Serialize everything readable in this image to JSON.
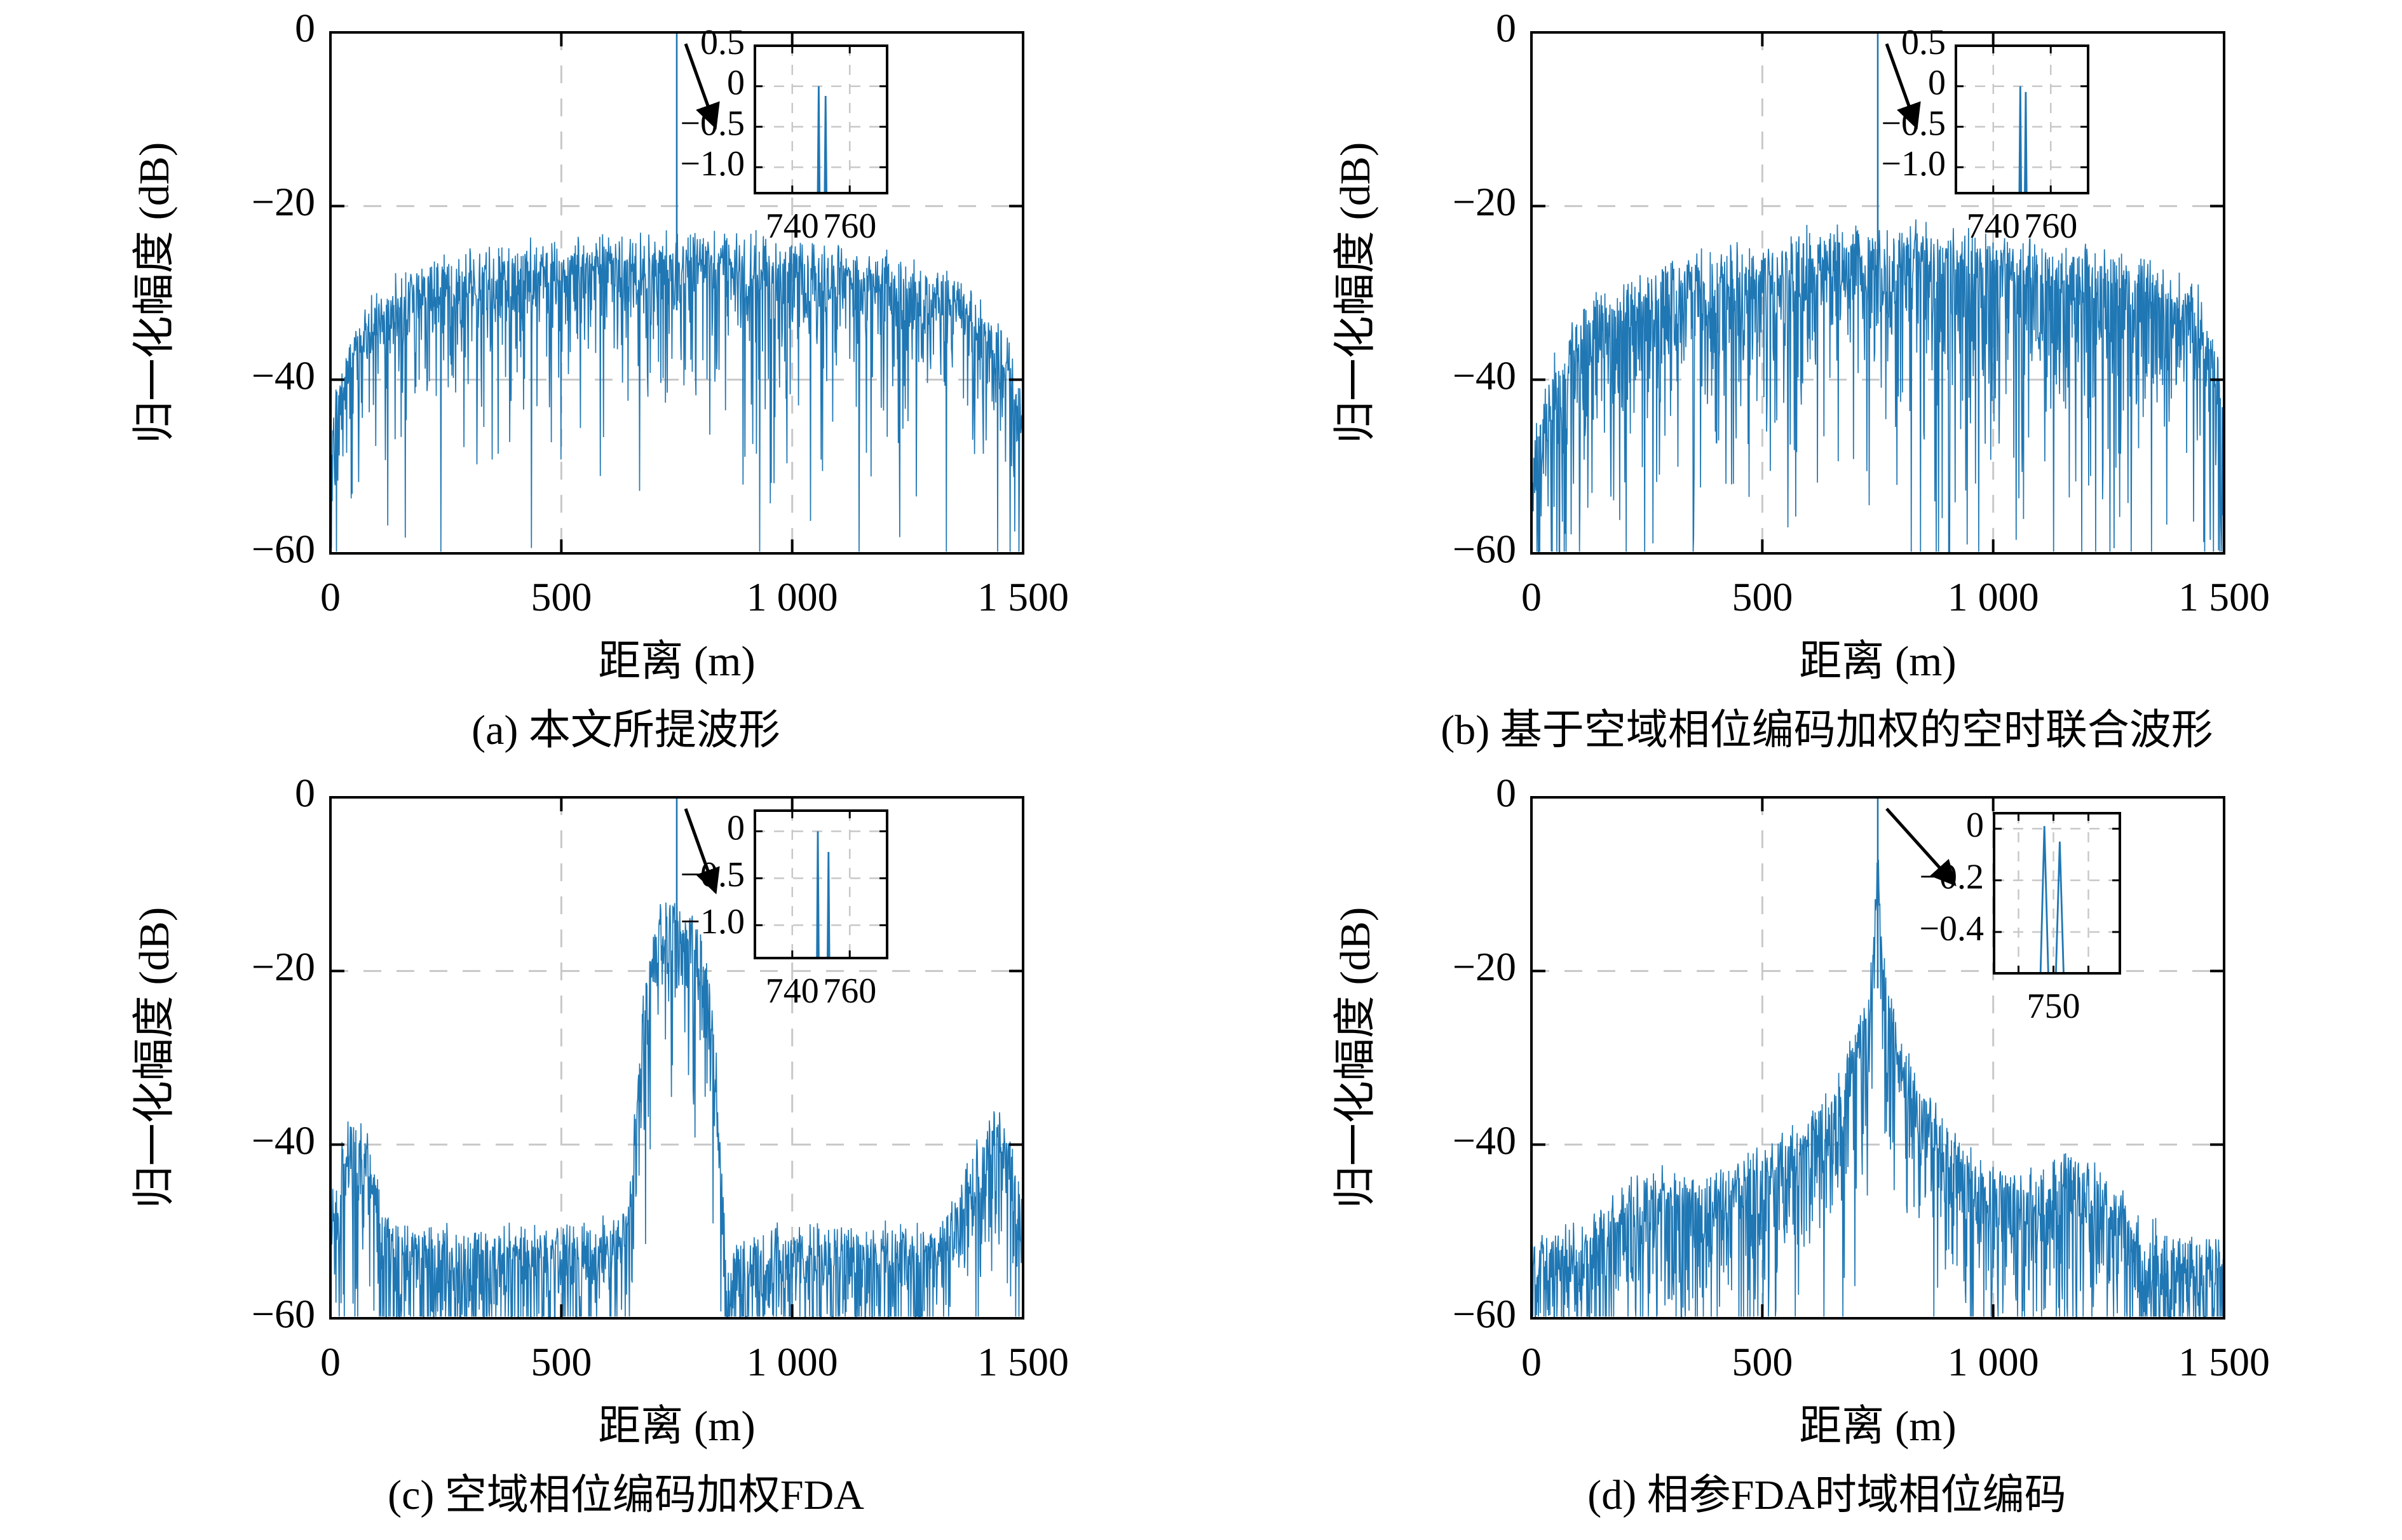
{
  "figure": {
    "line_color": "#1f77b4",
    "grid_color": "#c8c8c8",
    "frame_color": "#000000",
    "text_color": "#000000"
  },
  "chart_data": [
    {
      "id": "a",
      "type": "line",
      "caption": "(a) 本文所提波形",
      "xlabel": "距离 (m)",
      "ylabel": "归一化幅度 (dB)",
      "xlim": [
        0,
        1500
      ],
      "ylim": [
        -60,
        0
      ],
      "xticks": [
        {
          "v": 0,
          "label": "0"
        },
        {
          "v": 500,
          "label": "500"
        },
        {
          "v": 1000,
          "label": "1 000"
        },
        {
          "v": 1500,
          "label": "1 500"
        }
      ],
      "yticks": [
        {
          "v": 0,
          "label": "0"
        },
        {
          "v": -20,
          "label": "−20"
        },
        {
          "v": -40,
          "label": "−40"
        },
        {
          "v": -60,
          "label": "−60"
        }
      ],
      "grid_x": [
        500,
        1000
      ],
      "grid_y": [
        -20,
        -40
      ],
      "peak": {
        "x": 750,
        "y": 0
      },
      "peak_drop": 8,
      "envelope": [
        [
          0,
          -46
        ],
        [
          15,
          -40
        ],
        [
          40,
          -36
        ],
        [
          80,
          -32
        ],
        [
          150,
          -29
        ],
        [
          250,
          -27
        ],
        [
          400,
          -25.5
        ],
        [
          600,
          -24.5
        ],
        [
          750,
          -24
        ],
        [
          900,
          -24.5
        ],
        [
          1100,
          -25.5
        ],
        [
          1250,
          -27
        ],
        [
          1350,
          -29
        ],
        [
          1420,
          -32
        ],
        [
          1470,
          -37
        ],
        [
          1500,
          -43
        ]
      ],
      "noise": {
        "seed": 101,
        "n": 1500,
        "mean_depth": 4.4,
        "deep_prob": 0.05,
        "deep_extra": 27,
        "top_jitter": 2.0
      },
      "inset": {
        "xlim": [
          727,
          773
        ],
        "ylim": [
          -1.32,
          0.5
        ],
        "xticks": [
          {
            "v": 740,
            "label": "740"
          },
          {
            "v": 760,
            "label": "760"
          }
        ],
        "yticks": [
          {
            "v": 0.5,
            "label": "0.5"
          },
          {
            "v": 0,
            "label": "0"
          },
          {
            "v": -0.5,
            "label": "−0.5"
          },
          {
            "v": -1.0,
            "label": "−1.0"
          }
        ],
        "spike_w": 0.3,
        "spikes": [
          {
            "x": 749.2,
            "y": 0
          },
          {
            "x": 751.6,
            "y": -0.12
          }
        ]
      }
    },
    {
      "id": "b",
      "type": "line",
      "caption": "(b) 基于空域相位编码加权的空时联合波形",
      "xlabel": "距离 (m)",
      "ylabel": "归一化幅度 (dB)",
      "xlim": [
        0,
        1500
      ],
      "ylim": [
        -60,
        0
      ],
      "xticks": [
        {
          "v": 0,
          "label": "0"
        },
        {
          "v": 500,
          "label": "500"
        },
        {
          "v": 1000,
          "label": "1 000"
        },
        {
          "v": 1500,
          "label": "1 500"
        }
      ],
      "yticks": [
        {
          "v": 0,
          "label": "0"
        },
        {
          "v": -20,
          "label": "−20"
        },
        {
          "v": -40,
          "label": "−40"
        },
        {
          "v": -60,
          "label": "−60"
        }
      ],
      "grid_x": [
        500,
        1000
      ],
      "grid_y": [
        -20,
        -40
      ],
      "peak": {
        "x": 750,
        "y": 0
      },
      "peak_drop": 8,
      "envelope": [
        [
          0,
          -50
        ],
        [
          20,
          -43
        ],
        [
          60,
          -37
        ],
        [
          120,
          -32
        ],
        [
          220,
          -29
        ],
        [
          350,
          -26.5
        ],
        [
          500,
          -25
        ],
        [
          650,
          -23.5
        ],
        [
          800,
          -23
        ],
        [
          950,
          -24
        ],
        [
          1100,
          -25
        ],
        [
          1250,
          -26.5
        ],
        [
          1370,
          -28
        ],
        [
          1440,
          -30
        ],
        [
          1480,
          -35
        ],
        [
          1500,
          -44
        ]
      ],
      "noise": {
        "seed": 202,
        "n": 1500,
        "mean_depth": 6.0,
        "deep_prob": 0.07,
        "deep_extra": 28,
        "top_jitter": 2.0
      },
      "inset": {
        "xlim": [
          727,
          773
        ],
        "ylim": [
          -1.32,
          0.5
        ],
        "xticks": [
          {
            "v": 740,
            "label": "740"
          },
          {
            "v": 760,
            "label": "760"
          }
        ],
        "yticks": [
          {
            "v": 0.5,
            "label": "0.5"
          },
          {
            "v": 0,
            "label": "0"
          },
          {
            "v": -0.5,
            "label": "−0.5"
          },
          {
            "v": -1.0,
            "label": "−1.0"
          }
        ],
        "spike_w": 0.3,
        "spikes": [
          {
            "x": 749.4,
            "y": 0
          },
          {
            "x": 751.3,
            "y": -0.07
          }
        ]
      }
    },
    {
      "id": "c",
      "type": "line",
      "caption": "(c) 空域相位编码加权FDA",
      "xlabel": "距离 (m)",
      "ylabel": "归一化幅度 (dB)",
      "xlim": [
        0,
        1500
      ],
      "ylim": [
        -60,
        0
      ],
      "xticks": [
        {
          "v": 0,
          "label": "0"
        },
        {
          "v": 500,
          "label": "500"
        },
        {
          "v": 1000,
          "label": "1 000"
        },
        {
          "v": 1500,
          "label": "1 500"
        }
      ],
      "yticks": [
        {
          "v": 0,
          "label": "0"
        },
        {
          "v": -20,
          "label": "−20"
        },
        {
          "v": -40,
          "label": "−40"
        },
        {
          "v": -60,
          "label": "−60"
        }
      ],
      "grid_x": [
        500,
        1000
      ],
      "grid_y": [
        -20,
        -40
      ],
      "peak": {
        "x": 750,
        "y": 0
      },
      "peak_drop": 9,
      "envelope": [
        [
          0,
          -48
        ],
        [
          25,
          -40
        ],
        [
          55,
          -36.5
        ],
        [
          85,
          -41
        ],
        [
          115,
          -48
        ],
        [
          150,
          -50
        ],
        [
          300,
          -50.5
        ],
        [
          500,
          -50
        ],
        [
          620,
          -49
        ],
        [
          650,
          -45
        ],
        [
          665,
          -32
        ],
        [
          680,
          -22
        ],
        [
          695,
          -16
        ],
        [
          715,
          -13.5
        ],
        [
          750,
          -13
        ],
        [
          785,
          -14
        ],
        [
          805,
          -16
        ],
        [
          820,
          -21
        ],
        [
          835,
          -30
        ],
        [
          848,
          -43
        ],
        [
          858,
          -55
        ],
        [
          880,
          -52
        ],
        [
          950,
          -50.5
        ],
        [
          1150,
          -50
        ],
        [
          1300,
          -50
        ],
        [
          1360,
          -46
        ],
        [
          1400,
          -40
        ],
        [
          1435,
          -36.5
        ],
        [
          1465,
          -38
        ],
        [
          1490,
          -44
        ],
        [
          1500,
          -47
        ]
      ],
      "noise": {
        "seed": 303,
        "n": 1500,
        "mean_depth": 5.0,
        "deep_prob": 0.06,
        "deep_extra": 18,
        "top_jitter": 1.6
      },
      "inset": {
        "xlim": [
          727,
          773
        ],
        "ylim": [
          -1.35,
          0.22
        ],
        "xticks": [
          {
            "v": 740,
            "label": "740"
          },
          {
            "v": 760,
            "label": "760"
          }
        ],
        "yticks": [
          {
            "v": 0,
            "label": "0"
          },
          {
            "v": -0.5,
            "label": "−0.5"
          },
          {
            "v": -1.0,
            "label": "−1.0"
          }
        ],
        "spike_w": 0.3,
        "spikes": [
          {
            "x": 748.9,
            "y": 0
          },
          {
            "x": 752.6,
            "y": -0.22
          }
        ]
      }
    },
    {
      "id": "d",
      "type": "line",
      "caption": "(d) 相参FDA时域相位编码",
      "xlabel": "距离 (m)",
      "ylabel": "归一化幅度 (dB)",
      "xlim": [
        0,
        1500
      ],
      "ylim": [
        -60,
        0
      ],
      "xticks": [
        {
          "v": 0,
          "label": "0"
        },
        {
          "v": 500,
          "label": "500"
        },
        {
          "v": 1000,
          "label": "1 000"
        },
        {
          "v": 1500,
          "label": "1 500"
        }
      ],
      "yticks": [
        {
          "v": 0,
          "label": "0"
        },
        {
          "v": -20,
          "label": "−20"
        },
        {
          "v": -40,
          "label": "−40"
        },
        {
          "v": -60,
          "label": "−60"
        }
      ],
      "grid_x": [
        500,
        1000
      ],
      "grid_y": [
        -20,
        -40
      ],
      "peak": {
        "x": 750,
        "y": 0
      },
      "peak_drop": 18,
      "envelope": [
        [
          0,
          -50
        ],
        [
          120,
          -50
        ],
        [
          160,
          -47
        ],
        [
          220,
          -44
        ],
        [
          280,
          -43.5
        ],
        [
          350,
          -44
        ],
        [
          420,
          -43
        ],
        [
          480,
          -41.5
        ],
        [
          540,
          -40
        ],
        [
          600,
          -37.5
        ],
        [
          640,
          -34.5
        ],
        [
          670,
          -31.5
        ],
        [
          695,
          -28.5
        ],
        [
          715,
          -25
        ],
        [
          730,
          -21.5
        ],
        [
          740,
          -17
        ],
        [
          746,
          -11
        ],
        [
          750,
          -4
        ],
        [
          754,
          -11
        ],
        [
          760,
          -17
        ],
        [
          770,
          -21.5
        ],
        [
          785,
          -25
        ],
        [
          805,
          -28.5
        ],
        [
          830,
          -31.5
        ],
        [
          860,
          -34.5
        ],
        [
          900,
          -38
        ],
        [
          950,
          -41
        ],
        [
          1000,
          -43
        ],
        [
          1060,
          -44
        ],
        [
          1120,
          -43
        ],
        [
          1170,
          -41
        ],
        [
          1220,
          -43
        ],
        [
          1270,
          -46
        ],
        [
          1320,
          -49
        ],
        [
          1400,
          -51
        ],
        [
          1500,
          -51.5
        ]
      ],
      "noise": {
        "seed": 404,
        "n": 1500,
        "mean_depth": 5.6,
        "deep_prob": 0.06,
        "deep_extra": 16,
        "top_jitter": 1.6
      },
      "inset": {
        "xlim": [
          741.5,
          759.5
        ],
        "ylim": [
          -0.56,
          0.06
        ],
        "xticks": [
          {
            "v": 745,
            "label": ""
          },
          {
            "v": 750,
            "label": "750"
          },
          {
            "v": 755,
            "label": ""
          }
        ],
        "yticks": [
          {
            "v": 0,
            "label": "0"
          },
          {
            "v": -0.2,
            "label": "−0.2"
          },
          {
            "v": -0.4,
            "label": "−0.4"
          }
        ],
        "spike_w": 0.55,
        "spikes": [
          {
            "x": 748.7,
            "y": 0.01
          },
          {
            "x": 750.9,
            "y": -0.05
          }
        ]
      }
    }
  ]
}
